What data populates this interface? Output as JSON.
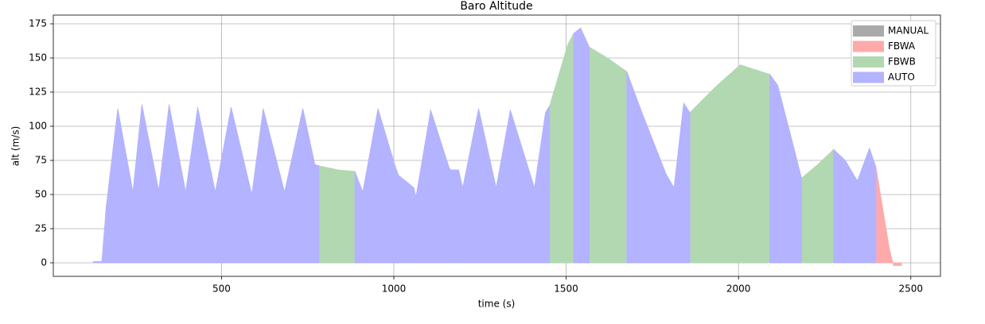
{
  "chart_data": {
    "type": "area",
    "title": "Baro Altitude",
    "x_label": "time (s)",
    "y_label": "alt (m/s)",
    "x": [
      128,
      153,
      165,
      199,
      243,
      269,
      318,
      348,
      396,
      431,
      482,
      528,
      588,
      621,
      683,
      736,
      771,
      783,
      840,
      887,
      910,
      954,
      1005,
      1014,
      1058,
      1064,
      1107,
      1160,
      1165,
      1188,
      1200,
      1246,
      1297,
      1338,
      1408,
      1440,
      1452,
      1505,
      1522,
      1542,
      1567,
      1620,
      1676,
      1720,
      1790,
      1813,
      1841,
      1859,
      1930,
      2005,
      2091,
      2114,
      2160,
      2183,
      2230,
      2276,
      2310,
      2345,
      2380,
      2399,
      2438,
      2450,
      2473
    ],
    "series": [
      {
        "name": "MANUAL",
        "color": "#aaaaaa",
        "values": [
          null,
          null,
          null,
          null,
          null,
          null,
          null,
          null,
          null,
          null,
          null,
          null,
          null,
          null,
          null,
          null,
          null,
          null,
          null,
          null,
          null,
          null,
          null,
          null,
          null,
          null,
          null,
          null,
          null,
          null,
          null,
          null,
          null,
          null,
          null,
          null,
          null,
          null,
          null,
          null,
          null,
          null,
          null,
          null,
          null,
          null,
          null,
          null,
          null,
          null,
          null,
          null,
          null,
          null,
          null,
          null,
          null,
          null,
          null,
          null,
          null,
          null,
          null
        ]
      },
      {
        "name": "FBWA",
        "color": "#ffaaaa",
        "values": [
          null,
          null,
          null,
          null,
          null,
          null,
          null,
          null,
          null,
          null,
          null,
          null,
          null,
          null,
          null,
          null,
          null,
          null,
          null,
          null,
          null,
          null,
          null,
          null,
          null,
          null,
          null,
          null,
          null,
          null,
          null,
          null,
          null,
          null,
          null,
          null,
          null,
          null,
          null,
          null,
          null,
          null,
          null,
          null,
          null,
          null,
          null,
          null,
          null,
          null,
          null,
          null,
          null,
          null,
          null,
          null,
          null,
          null,
          null,
          70,
          10,
          -2,
          -2
        ]
      },
      {
        "name": "FBWB",
        "color": "#b2d8b2",
        "values": [
          null,
          null,
          null,
          null,
          null,
          null,
          null,
          null,
          null,
          null,
          null,
          null,
          null,
          null,
          null,
          null,
          null,
          71,
          68,
          67,
          null,
          null,
          null,
          64,
          55,
          null,
          null,
          null,
          68,
          68,
          null,
          null,
          null,
          null,
          null,
          null,
          115,
          160,
          168,
          null,
          158,
          150,
          140,
          null,
          null,
          null,
          null,
          110,
          128,
          145,
          138,
          null,
          null,
          62,
          72,
          83,
          null,
          null,
          null,
          null,
          null,
          null,
          null
        ]
      },
      {
        "name": "AUTO",
        "color": "#b3b3ff",
        "values": [
          1,
          1,
          40,
          113,
          52,
          116,
          53,
          116,
          52,
          114,
          52,
          114,
          50,
          113,
          52,
          113,
          72,
          71,
          null,
          67,
          52,
          113,
          70,
          64,
          55,
          48,
          112,
          70,
          68,
          68,
          55,
          113,
          55,
          112,
          55,
          110,
          115,
          null,
          168,
          172,
          158,
          null,
          140,
          110,
          65,
          55,
          117,
          110,
          null,
          null,
          138,
          130,
          85,
          62,
          null,
          83,
          75,
          60,
          84,
          70,
          null,
          null,
          null
        ]
      }
    ],
    "xlim": [
      12,
      2586
    ],
    "ylim": [
      -9.9,
      181.4
    ],
    "xticks": [
      500,
      1000,
      1500,
      2000,
      2500
    ],
    "yticks": [
      0,
      25,
      50,
      75,
      100,
      125,
      150,
      175
    ],
    "grid": true,
    "legend": "upper right"
  }
}
